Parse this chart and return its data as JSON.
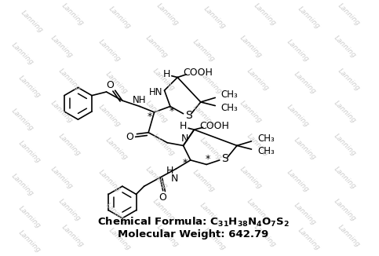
{
  "background_color": "#ffffff",
  "watermark_text": "Lanning",
  "line_color": "#000000",
  "text_color": "#000000",
  "formula_line1": "Chemical Formula: C",
  "formula_sub1": "31",
  "formula_h": "H",
  "formula_sub2": "38",
  "formula_n": "N",
  "formula_sub3": "4",
  "formula_o": "O",
  "formula_sub4": "7",
  "formula_s": "S",
  "formula_sub5": "2",
  "mw_label": "Molecular Weight: 642.79",
  "figsize": [
    4.83,
    3.26
  ],
  "dpi": 100
}
